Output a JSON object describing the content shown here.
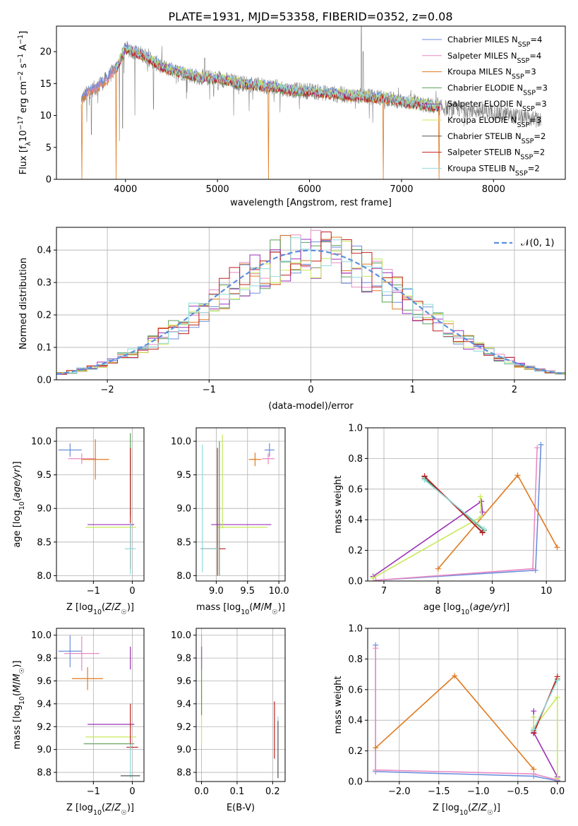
{
  "figure_title": "PLATE=1931, MJD=53358, FIBERID=0352, z=0.08",
  "colors": {
    "Chabrier MILES": "#6a8fdc",
    "Salpeter MILES": "#e88ac3",
    "Kroupa MILES": "#e07a1f",
    "Chabrier ELODIE": "#5a9e5a",
    "Salpeter ELODIE": "#9b30b8",
    "Kroupa ELODIE": "#c8e85a",
    "Chabrier STELIB": "#555555",
    "Salpeter STELIB": "#c0201f",
    "Kroupa STELIB": "#8fdada",
    "data": "#7f7f7f",
    "gaussian": "#5b8fdc"
  },
  "chart_data": [
    {
      "id": "spectrum",
      "type": "line",
      "title": "PLATE=1931, MJD=53358, FIBERID=0352, z=0.08",
      "xlabel": "wavelength [Angstrom, rest frame]",
      "ylabel": "Flux [f_λ10^-17 erg cm^-2 s^-1 A^-1]",
      "xlim": [
        3250,
        8780
      ],
      "ylim": [
        0,
        24
      ],
      "xticks": [
        4000,
        5000,
        6000,
        7000,
        8000
      ],
      "yticks": [
        0,
        5,
        10,
        15,
        20
      ],
      "legend_position": "top-right",
      "legend": [
        {
          "name": "Chabrier MILES",
          "sub": "SSP",
          "n": 4
        },
        {
          "name": "Salpeter MILES",
          "sub": "SSP",
          "n": 4
        },
        {
          "name": "Kroupa MILES",
          "sub": "SSP",
          "n": 3
        },
        {
          "name": "Chabrier ELODIE",
          "sub": "SSP",
          "n": 3
        },
        {
          "name": "Salpeter ELODIE",
          "sub": "SSP",
          "n": 3
        },
        {
          "name": "Kroupa ELODIE",
          "sub": "SSP",
          "n": 3
        },
        {
          "name": "Chabrier STELIB",
          "sub": "SSP",
          "n": 2
        },
        {
          "name": "Salpeter STELIB",
          "sub": "SSP",
          "n": 2
        },
        {
          "name": "Kroupa STELIB",
          "sub": "SSP",
          "n": 2
        }
      ],
      "continuum": {
        "x": [
          3520,
          3600,
          3700,
          3800,
          3900,
          4000,
          4100,
          4200,
          4300,
          4400,
          4600,
          4800,
          5000,
          5200,
          5400,
          5600,
          5800,
          6000,
          6200,
          6400,
          6600,
          6800,
          7000,
          7200,
          7400,
          7600,
          7800,
          8000,
          8200,
          8400,
          8520
        ],
        "y": [
          12.5,
          13.8,
          14.5,
          15.8,
          17.5,
          20.5,
          20.0,
          19.5,
          18.5,
          17.6,
          16.8,
          16.0,
          15.8,
          15.2,
          14.8,
          14.5,
          14.0,
          13.8,
          13.5,
          13.2,
          13.0,
          12.8,
          12.2,
          11.8,
          11.3,
          11.0,
          10.8,
          10.5,
          10.0,
          9.5,
          9.1
        ]
      },
      "data_range": [
        3520,
        8520
      ],
      "model_ranges": [
        [
          3520,
          7420
        ],
        [
          3900,
          7410
        ],
        [
          3900,
          7410
        ]
      ],
      "model_dips": [
        {
          "x": 3525,
          "y": 0
        },
        {
          "x": 3900,
          "y": 0
        },
        {
          "x": 5555,
          "y": 0
        },
        {
          "x": 6800,
          "y": 0
        },
        {
          "x": 7410,
          "y": 0
        }
      ],
      "emission_lines": [
        {
          "x": 6563,
          "y": 24
        },
        {
          "x": 4861,
          "y": 19
        },
        {
          "x": 6583,
          "y": 20
        },
        {
          "x": 3727,
          "y": 16
        },
        {
          "x": 5007,
          "y": 14
        },
        {
          "x": 4959,
          "y": 13
        },
        {
          "x": 6300,
          "y": 12
        }
      ],
      "absorption_lines": [
        {
          "x": 3934,
          "y": 6
        },
        {
          "x": 3969,
          "y": 8
        },
        {
          "x": 4102,
          "y": 10
        },
        {
          "x": 4305,
          "y": 11
        },
        {
          "x": 5176,
          "y": 10
        },
        {
          "x": 5890,
          "y": 11
        },
        {
          "x": 3580,
          "y": 9
        },
        {
          "x": 3630,
          "y": 7
        }
      ]
    },
    {
      "id": "residuals",
      "type": "histogram",
      "xlabel": "(data-model)/error",
      "ylabel": "Normed distribution",
      "xlim": [
        -2.5,
        2.5
      ],
      "ylim": [
        0,
        0.47
      ],
      "xticks": [
        -2,
        -1,
        0,
        1,
        2
      ],
      "yticks": [
        0.0,
        0.1,
        0.2,
        0.3,
        0.4
      ],
      "legend": "𝒩(0, 1)",
      "legend_position": "top-right",
      "bins": 50,
      "gaussian": {
        "mean": 0,
        "sigma": 1
      },
      "series_models": [
        "Chabrier MILES",
        "Salpeter MILES",
        "Kroupa MILES",
        "Chabrier ELODIE",
        "Salpeter ELODIE",
        "Kroupa ELODIE",
        "Salpeter STELIB",
        "Kroupa STELIB"
      ]
    },
    {
      "id": "age_vs_Z",
      "type": "errorbar",
      "xlabel": "Z [log10(Z/Z☉)]",
      "ylabel": "age [log10(age/yr)]",
      "xlim": [
        -1.95,
        0.3
      ],
      "ylim": [
        7.92,
        10.2
      ],
      "xticks": [
        -1,
        0
      ],
      "yticks": [
        8.0,
        8.5,
        9.0,
        9.5,
        10.0
      ],
      "points": [
        {
          "model": "Chabrier MILES",
          "x": -1.6,
          "y": 9.87,
          "xerr": 0.3,
          "yerr": 0.1
        },
        {
          "model": "Salpeter MILES",
          "x": -1.3,
          "y": 9.74,
          "xerr": 0.35,
          "yerr": 0.08
        },
        {
          "model": "Kroupa MILES",
          "x": -0.95,
          "y": 9.73,
          "xerr": 0.35,
          "yerr": 0.3
        },
        {
          "model": "Chabrier ELODIE",
          "x": -0.05,
          "y": 9.5,
          "xerr": 0.0,
          "yerr": 0.62
        },
        {
          "model": "Salpeter ELODIE",
          "x": -0.55,
          "y": 8.76,
          "xerr": 0.6,
          "yerr": 0.0
        },
        {
          "model": "Kroupa ELODIE",
          "x": -0.55,
          "y": 8.72,
          "xerr": 0.65,
          "yerr": 0.0
        },
        {
          "model": "Salpeter STELIB",
          "x": -0.05,
          "y": 9.0,
          "xerr": 0.0,
          "yerr": 0.9
        },
        {
          "model": "Kroupa STELIB",
          "x": -0.05,
          "y": 8.4,
          "xerr": 0.14,
          "yerr": 0.38
        }
      ]
    },
    {
      "id": "age_vs_mass",
      "type": "errorbar",
      "xlabel": "mass [log10(M/M☉)]",
      "ylabel": "",
      "xlim": [
        8.68,
        10.1
      ],
      "ylim": [
        7.92,
        10.2
      ],
      "xticks": [
        9.0,
        9.5,
        10.0
      ],
      "yticks": [
        8.0,
        8.5,
        9.0,
        9.5,
        10.0
      ],
      "points": [
        {
          "model": "Chabrier MILES",
          "x": 9.85,
          "y": 9.87,
          "xerr": 0.08,
          "yerr": 0.1
        },
        {
          "model": "Salpeter MILES",
          "x": 9.83,
          "y": 9.74,
          "xerr": 0.1,
          "yerr": 0.08
        },
        {
          "model": "Kroupa MILES",
          "x": 9.62,
          "y": 9.73,
          "xerr": 0.1,
          "yerr": 0.1
        },
        {
          "model": "Salpeter ELODIE",
          "x": 9.4,
          "y": 8.76,
          "xerr": 0.48,
          "yerr": 0.0
        },
        {
          "model": "Kroupa ELODIE",
          "x": 9.42,
          "y": 8.72,
          "xerr": 0.4,
          "yerr": 0.0
        },
        {
          "model": "Chabrier ELODIE",
          "x": 9.05,
          "y": 9.0,
          "xerr": 0.0,
          "yerr": 1.0
        },
        {
          "model": "Kroupa ELODIE",
          "x": 9.1,
          "y": 9.4,
          "xerr": 0.0,
          "yerr": 0.7
        },
        {
          "model": "Salpeter STELIB",
          "x": 9.02,
          "y": 8.95,
          "xerr": 0.0,
          "yerr": 0.95
        },
        {
          "model": "Kroupa STELIB",
          "x": 8.78,
          "y": 9.0,
          "xerr": 0.0,
          "yerr": 0.95
        },
        {
          "model": "Salpeter STELIB",
          "x": 8.95,
          "y": 8.4,
          "xerr": 0.2,
          "yerr": 0.0
        },
        {
          "model": "Kroupa STELIB",
          "x": 8.9,
          "y": 8.4,
          "xerr": 0.15,
          "yerr": 0.0
        }
      ]
    },
    {
      "id": "weight_vs_age",
      "type": "line",
      "xlabel": "age [log10(age/yr)]",
      "ylabel": "mass weight",
      "xlim": [
        6.7,
        10.35
      ],
      "ylim": [
        0,
        1.0
      ],
      "xticks": [
        7,
        8,
        9,
        10
      ],
      "yticks": [
        0.0,
        0.2,
        0.4,
        0.6,
        0.8,
        1.0
      ],
      "series": [
        {
          "model": "Chabrier MILES",
          "x": [
            6.85,
            9.8,
            9.9
          ],
          "y": [
            0.005,
            0.07,
            0.89
          ]
        },
        {
          "model": "Salpeter MILES",
          "x": [
            6.85,
            9.75,
            9.83
          ],
          "y": [
            0.005,
            0.08,
            0.87
          ]
        },
        {
          "model": "Kroupa MILES",
          "x": [
            8.0,
            9.47,
            10.2
          ],
          "y": [
            0.08,
            0.69,
            0.22
          ]
        },
        {
          "model": "Chabrier ELODIE",
          "x": [
            7.75,
            8.85
          ],
          "y": [
            0.67,
            0.33
          ]
        },
        {
          "model": "Salpeter ELODIE",
          "x": [
            6.8,
            8.8,
            8.82
          ],
          "y": [
            0.03,
            0.52,
            0.45
          ]
        },
        {
          "model": "Kroupa ELODIE",
          "x": [
            6.8,
            8.8,
            8.78
          ],
          "y": [
            0.02,
            0.42,
            0.55
          ]
        },
        {
          "model": "Chabrier STELIB",
          "x": [
            7.75,
            8.82
          ],
          "y": [
            0.68,
            0.32
          ]
        },
        {
          "model": "Salpeter STELIB",
          "x": [
            7.75,
            8.82
          ],
          "y": [
            0.685,
            0.315
          ]
        },
        {
          "model": "Kroupa STELIB",
          "x": [
            7.75,
            8.85
          ],
          "y": [
            0.66,
            0.34
          ]
        }
      ]
    },
    {
      "id": "mass_vs_Z",
      "type": "errorbar",
      "xlabel": "Z [log10(Z/Z☉)]",
      "ylabel": "mass [log10(M/M☉)]",
      "xlim": [
        -1.95,
        0.3
      ],
      "ylim": [
        8.72,
        10.06
      ],
      "xticks": [
        -1,
        0
      ],
      "yticks": [
        8.8,
        9.0,
        9.2,
        9.4,
        9.6,
        9.8,
        10.0
      ],
      "points": [
        {
          "model": "Chabrier MILES",
          "x": -1.6,
          "y": 9.86,
          "xerr": 0.3,
          "yerr": 0.14
        },
        {
          "model": "Salpeter MILES",
          "x": -1.3,
          "y": 9.84,
          "xerr": 0.45,
          "yerr": 0.15
        },
        {
          "model": "Kroupa MILES",
          "x": -1.15,
          "y": 9.62,
          "xerr": 0.4,
          "yerr": 0.1
        },
        {
          "model": "Salpeter ELODIE",
          "x": -0.55,
          "y": 9.22,
          "xerr": 0.6,
          "yerr": 0.0
        },
        {
          "model": "Kroupa ELODIE",
          "x": -0.55,
          "y": 9.11,
          "xerr": 0.65,
          "yerr": 0.0
        },
        {
          "model": "Chabrier ELODIE",
          "x": -0.6,
          "y": 9.05,
          "xerr": 0.65,
          "yerr": 0.0
        },
        {
          "model": "Salpeter ELODIE",
          "x": -0.05,
          "y": 9.8,
          "xerr": 0.0,
          "yerr": 0.1
        },
        {
          "model": "Salpeter STELIB",
          "x": -0.05,
          "y": 9.2,
          "xerr": 0.0,
          "yerr": 0.2
        },
        {
          "model": "Salpeter STELIB",
          "x": 0.0,
          "y": 9.02,
          "xerr": 0.15,
          "yerr": 0.0
        },
        {
          "model": "Kroupa STELIB",
          "x": -0.05,
          "y": 8.9,
          "xerr": 0.0,
          "yerr": 0.15
        },
        {
          "model": "Chabrier STELIB",
          "x": -0.05,
          "y": 8.77,
          "xerr": 0.25,
          "yerr": 0.0
        }
      ]
    },
    {
      "id": "mass_vs_ebv",
      "type": "errorbar",
      "xlabel": "E(B-V)",
      "ylabel": "",
      "xlim": [
        -0.015,
        0.235
      ],
      "ylim": [
        8.72,
        10.06
      ],
      "xticks": [
        0.0,
        0.1,
        0.2
      ],
      "yticks": [
        8.8,
        9.0,
        9.2,
        9.4,
        9.6,
        9.8,
        10.0
      ],
      "points": [
        {
          "model": "Salpeter MILES",
          "x": 0.0,
          "y": 9.85,
          "xerr": 0.0,
          "yerr": 0.15
        },
        {
          "model": "Salpeter ELODIE",
          "x": 0.0,
          "y": 9.8,
          "xerr": 0.0,
          "yerr": 0.1
        },
        {
          "model": "Kroupa ELODIE",
          "x": 0.0,
          "y": 9.35,
          "xerr": 0.0,
          "yerr": 0.3
        },
        {
          "model": "Chabrier ELODIE",
          "x": 0.0,
          "y": 9.6,
          "xerr": 0.0,
          "yerr": 0.3
        },
        {
          "model": "Salpeter STELIB",
          "x": 0.205,
          "y": 9.17,
          "xerr": 0.0,
          "yerr": 0.25
        },
        {
          "model": "Kroupa STELIB",
          "x": 0.215,
          "y": 9.02,
          "xerr": 0.0,
          "yerr": 0.27
        },
        {
          "model": "Chabrier STELIB",
          "x": 0.215,
          "y": 9.0,
          "xerr": 0.0,
          "yerr": 0.25
        }
      ]
    },
    {
      "id": "weight_vs_Z",
      "type": "line",
      "xlabel": "Z [log10(Z/Z☉)]",
      "ylabel": "mass weight",
      "xlim": [
        -2.4,
        0.1
      ],
      "ylim": [
        0,
        1.0
      ],
      "xticks": [
        -2.0,
        -1.5,
        -1.0,
        -0.5,
        0.0
      ],
      "yticks": [
        0.0,
        0.2,
        0.4,
        0.6,
        0.8,
        1.0
      ],
      "series": [
        {
          "model": "Chabrier MILES",
          "x": [
            -2.3,
            -2.3,
            -0.3,
            0.0
          ],
          "y": [
            0.89,
            0.065,
            0.035,
            0.005
          ]
        },
        {
          "model": "Salpeter MILES",
          "x": [
            -2.3,
            -2.3,
            -0.3,
            0.0
          ],
          "y": [
            0.87,
            0.075,
            0.05,
            0.01
          ]
        },
        {
          "model": "Kroupa MILES",
          "x": [
            -2.3,
            -1.3,
            -0.3
          ],
          "y": [
            0.22,
            0.69,
            0.08
          ]
        },
        {
          "model": "Chabrier ELODIE",
          "x": [
            -0.3,
            0.0
          ],
          "y": [
            0.33,
            0.67
          ]
        },
        {
          "model": "Salpeter ELODIE",
          "x": [
            -0.3,
            -0.3,
            0.0,
            0.0
          ],
          "y": [
            0.46,
            0.32,
            0.03,
            0.0
          ]
        },
        {
          "model": "Kroupa ELODIE",
          "x": [
            -0.3,
            -0.3,
            0.0,
            0.0
          ],
          "y": [
            0.42,
            0.35,
            0.55,
            0.02
          ]
        },
        {
          "model": "Salpeter STELIB",
          "x": [
            -0.3,
            0.0
          ],
          "y": [
            0.315,
            0.685
          ]
        },
        {
          "model": "Kroupa STELIB",
          "x": [
            -0.3,
            0.0
          ],
          "y": [
            0.34,
            0.66
          ]
        }
      ]
    }
  ]
}
